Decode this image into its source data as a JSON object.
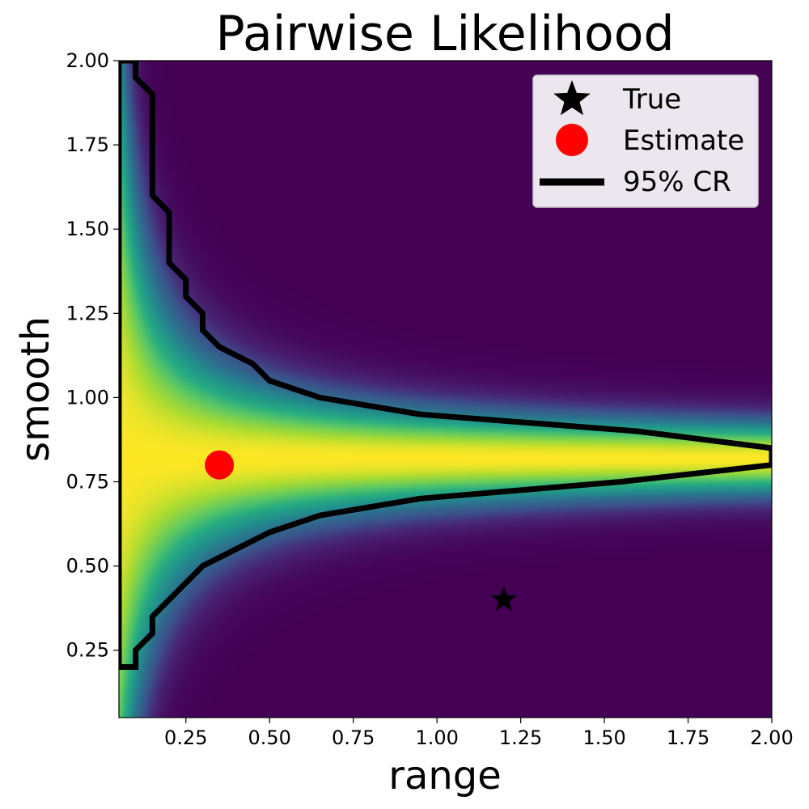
{
  "chart_data": {
    "type": "heatmap",
    "title": "Pairwise Likelihood",
    "xlabel": "range",
    "ylabel": "smooth",
    "xlim": [
      0.05,
      2.0
    ],
    "ylim": [
      0.05,
      2.0
    ],
    "xticks": [
      "0.25",
      "0.50",
      "0.75",
      "1.00",
      "1.25",
      "1.50",
      "1.75",
      "2.00"
    ],
    "yticks": [
      "0.25",
      "0.50",
      "0.75",
      "1.00",
      "1.25",
      "1.50",
      "1.75",
      "2.00"
    ],
    "colormap": "viridis",
    "true_point": {
      "x": 1.2,
      "y": 0.4
    },
    "estimate_point": {
      "x": 0.35,
      "y": 0.8
    },
    "credible_region": [
      [
        0.05,
        2.0
      ],
      [
        0.05,
        0.2
      ],
      [
        0.1,
        0.2
      ],
      [
        0.1,
        0.25
      ],
      [
        0.15,
        0.3
      ],
      [
        0.15,
        0.35
      ],
      [
        0.3,
        0.5
      ],
      [
        0.5,
        0.6
      ],
      [
        0.65,
        0.65
      ],
      [
        0.95,
        0.7
      ],
      [
        1.55,
        0.75
      ],
      [
        2.0,
        0.8
      ],
      [
        2.0,
        0.85
      ],
      [
        1.6,
        0.9
      ],
      [
        0.95,
        0.95
      ],
      [
        0.65,
        1.0
      ],
      [
        0.5,
        1.05
      ],
      [
        0.45,
        1.1
      ],
      [
        0.35,
        1.15
      ],
      [
        0.3,
        1.2
      ],
      [
        0.3,
        1.25
      ],
      [
        0.25,
        1.3
      ],
      [
        0.25,
        1.35
      ],
      [
        0.2,
        1.4
      ],
      [
        0.2,
        1.55
      ],
      [
        0.15,
        1.6
      ],
      [
        0.15,
        1.9
      ],
      [
        0.1,
        1.95
      ],
      [
        0.1,
        2.0
      ]
    ],
    "legend": {
      "position": "top-right",
      "entries": [
        {
          "label": "True",
          "marker": "star",
          "color": "#000000"
        },
        {
          "label": "Estimate",
          "marker": "circle",
          "color": "#ff0000"
        },
        {
          "label": "95% CR",
          "marker": "line",
          "color": "#000000"
        }
      ]
    },
    "colors": {
      "low": "#440154",
      "high": "#fde725",
      "estimate": "#ff0000",
      "region": "#000000"
    },
    "grid": false
  }
}
